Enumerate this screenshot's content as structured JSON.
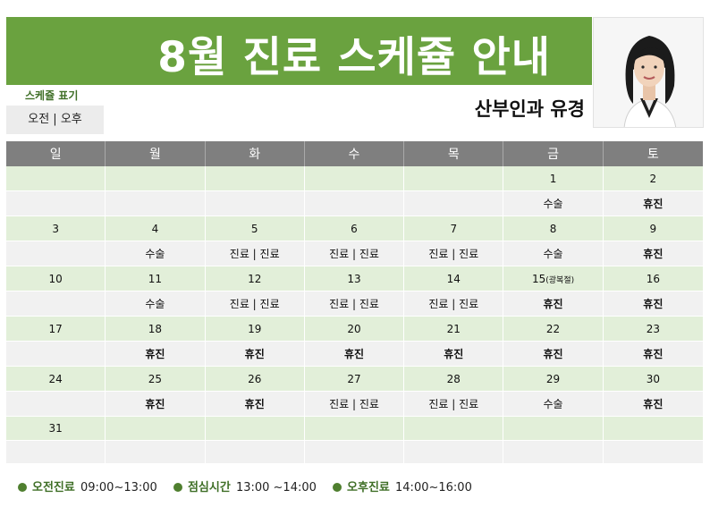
{
  "header": {
    "title": "8월 진료 스케쥴 안내",
    "legend_caption": "스케쥴 표기",
    "legend_value": "오전 | 오후",
    "doctor": "산부인과 유경"
  },
  "colors": {
    "banner": "#6aa23f",
    "header_row": "#7f7f7f",
    "date_row": "#e2efd9",
    "schedule_row": "#f1f1f1",
    "holiday_red": "#c00000",
    "accent_green": "#3f6f27"
  },
  "calendar": {
    "days": [
      "일",
      "월",
      "화",
      "수",
      "목",
      "금",
      "토"
    ],
    "weeks": [
      {
        "dates": [
          "",
          "",
          "",
          "",
          "",
          "1",
          "2"
        ],
        "schedule": [
          "",
          "",
          "",
          "",
          "",
          "수술",
          "휴진"
        ]
      },
      {
        "dates": [
          "3",
          "4",
          "5",
          "6",
          "7",
          "8",
          "9"
        ],
        "schedule": [
          "",
          "수술",
          "진료 | 진료",
          "진료 | 진료",
          "진료 | 진료",
          "수술",
          "휴진"
        ]
      },
      {
        "dates": [
          "10",
          "11",
          "12",
          "13",
          "14",
          "15",
          "16"
        ],
        "schedule": [
          "",
          "수술",
          "진료 | 진료",
          "진료 | 진료",
          "진료 | 진료",
          "휴진",
          "휴진"
        ]
      },
      {
        "dates": [
          "17",
          "18",
          "19",
          "20",
          "21",
          "22",
          "23"
        ],
        "schedule": [
          "",
          "휴진",
          "휴진",
          "휴진",
          "휴진",
          "휴진",
          "휴진"
        ]
      },
      {
        "dates": [
          "24",
          "25",
          "26",
          "27",
          "28",
          "29",
          "30"
        ],
        "schedule": [
          "",
          "휴진",
          "휴진",
          "진료 | 진료",
          "진료 | 진료",
          "수술",
          "휴진"
        ]
      },
      {
        "dates": [
          "31",
          "",
          "",
          "",
          "",
          "",
          ""
        ],
        "schedule": [
          "",
          "",
          "",
          "",
          "",
          "",
          ""
        ]
      }
    ],
    "holiday_note": "(광복절)"
  },
  "footer": [
    {
      "label": "오전진료",
      "time": "09:00~13:00"
    },
    {
      "label": "점심시간",
      "time": "13:00 ~14:00"
    },
    {
      "label": "오후진료",
      "time": "14:00~16:00"
    }
  ]
}
